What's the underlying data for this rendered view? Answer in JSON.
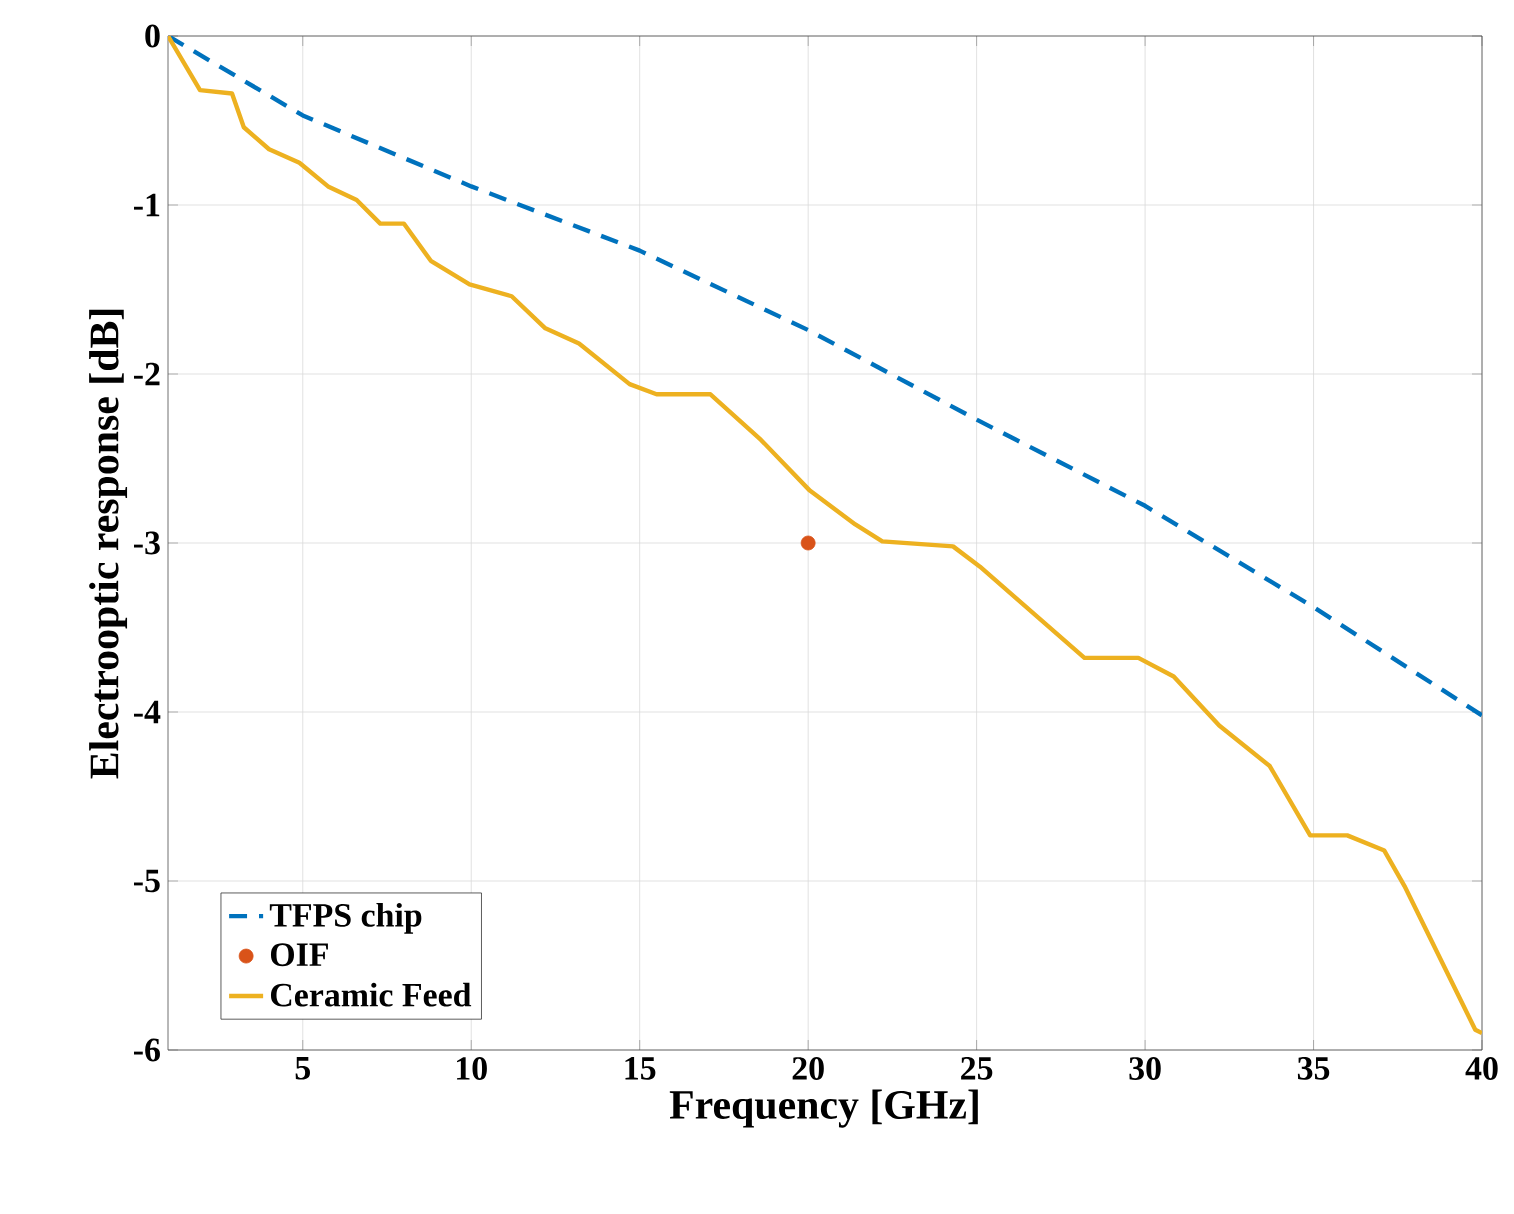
{
  "chart_data": {
    "type": "line",
    "xlabel": "Frequency [GHz]",
    "ylabel": "Electrooptic response [dB]",
    "xlim": [
      1,
      40
    ],
    "ylim": [
      -6,
      0
    ],
    "xticks": [
      5,
      10,
      15,
      20,
      25,
      30,
      35,
      40
    ],
    "yticks": [
      -6,
      -5,
      -4,
      -3,
      -2,
      -1,
      0
    ],
    "grid": true,
    "legend": "bottom left",
    "series": [
      {
        "name": "TFPS chip",
        "line_style": "dashed",
        "color": "#0072bd",
        "x": [
          1,
          5,
          10,
          15,
          20,
          25,
          30,
          35,
          40
        ],
        "values": [
          0,
          -0.47,
          -0.89,
          -1.27,
          -1.74,
          -2.27,
          -2.78,
          -3.38,
          -4.02
        ]
      },
      {
        "name": "OIF",
        "type": "scatter",
        "marker": "circle",
        "color": "#d95319",
        "x": [
          20
        ],
        "values": [
          -3
        ]
      },
      {
        "name": "Ceramic Feed",
        "line_style": "solid",
        "color": "#edb120",
        "x": [
          1,
          1.95,
          2.9,
          3.25,
          4,
          4.9,
          5.75,
          6.6,
          7.3,
          8,
          8.8,
          9.95,
          11.2,
          12.2,
          13.2,
          14.7,
          15.5,
          17.1,
          18.6,
          20.05,
          21.4,
          22.2,
          24.3,
          25.1,
          28.2,
          29.8,
          30.85,
          32.2,
          33.7,
          34.9,
          36,
          37.1,
          37.7,
          39.8,
          40
        ],
        "values": [
          0,
          -0.32,
          -0.34,
          -0.54,
          -0.67,
          -0.75,
          -0.89,
          -0.97,
          -1.11,
          -1.11,
          -1.33,
          -1.47,
          -1.54,
          -1.73,
          -1.82,
          -2.06,
          -2.12,
          -2.12,
          -2.39,
          -2.69,
          -2.89,
          -2.99,
          -3.02,
          -3.14,
          -3.68,
          -3.68,
          -3.79,
          -4.08,
          -4.32,
          -4.73,
          -4.73,
          -4.82,
          -5.03,
          -5.88,
          -5.9
        ]
      }
    ]
  }
}
